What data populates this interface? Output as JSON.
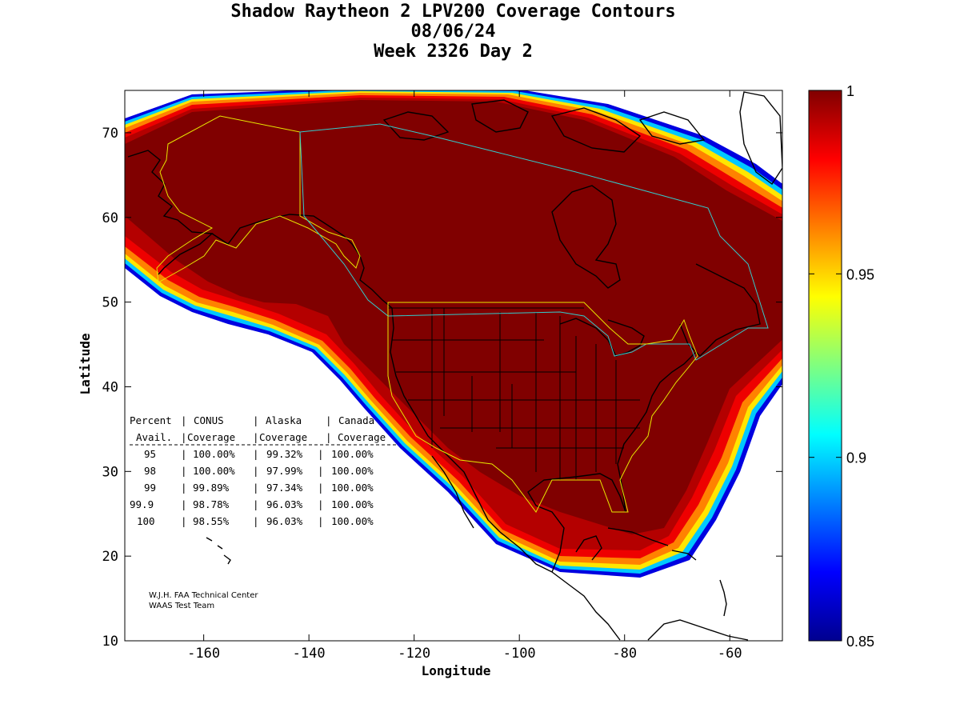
{
  "title": {
    "line1": "Shadow Raytheon 2 LPV200 Coverage Contours",
    "line2": "08/06/24",
    "line3": "Week 2326 Day 2"
  },
  "axes": {
    "xlabel": "Longitude",
    "ylabel": "Latitude",
    "xlim": [
      -175,
      -50
    ],
    "ylim": [
      10,
      75
    ],
    "xticks": [
      -160,
      -140,
      -120,
      -100,
      -80,
      -60
    ],
    "yticks": [
      10,
      20,
      30,
      40,
      50,
      60,
      70
    ]
  },
  "colorbar": {
    "min": 0.85,
    "max": 1,
    "labels": [
      {
        "value": 1,
        "text": "1"
      },
      {
        "value": 0.95,
        "text": "0.95"
      },
      {
        "value": 0.9,
        "text": "0.9"
      },
      {
        "value": 0.85,
        "text": "0.85"
      }
    ],
    "colormap": "jet"
  },
  "colors": {
    "coverage_core": "#800000",
    "region_outline_conus": "#e8e800",
    "region_outline_canada": "#33cccc",
    "coastline": "#000000"
  },
  "table": {
    "headers": [
      "Percent",
      "CONUS",
      "Alaska",
      "Canada"
    ],
    "subheaders": [
      "Avail.",
      "Coverage",
      "Coverage",
      "Coverage"
    ],
    "rows": [
      [
        "95",
        "100.00%",
        "99.32%",
        "100.00%"
      ],
      [
        "98",
        "100.00%",
        "97.99%",
        "100.00%"
      ],
      [
        "99",
        "99.89%",
        "97.34%",
        "100.00%"
      ],
      [
        "99.9",
        "98.78%",
        "96.03%",
        "100.00%"
      ],
      [
        "100",
        "98.55%",
        "96.03%",
        "100.00%"
      ]
    ]
  },
  "credit": {
    "line1": "W.J.H. FAA Technical Center",
    "line2": "WAAS Test Team"
  }
}
